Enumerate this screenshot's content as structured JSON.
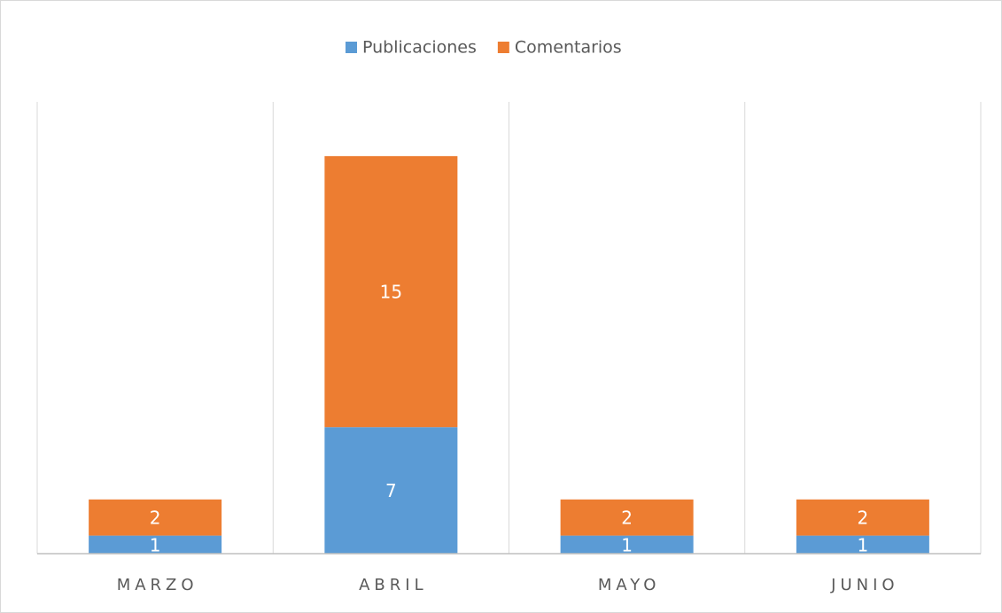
{
  "chart_data": {
    "type": "stacked_bar",
    "categories": [
      "MARZO",
      "ABRIL",
      "MAYO",
      "JUNIO"
    ],
    "series": [
      {
        "name": "Publicaciones",
        "color": "#5b9bd5",
        "values": [
          1,
          7,
          1,
          1
        ]
      },
      {
        "name": "Comentarios",
        "color": "#ed7d31",
        "values": [
          2,
          15,
          2,
          2
        ]
      }
    ],
    "ylim": [
      0,
      25
    ],
    "legend": "top"
  }
}
